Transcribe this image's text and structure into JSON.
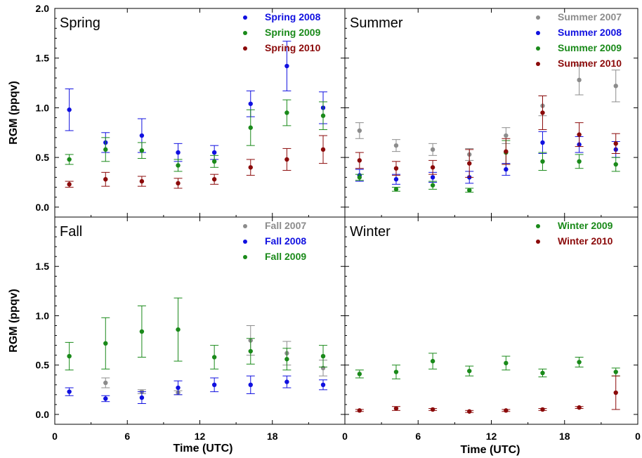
{
  "chart_data": {
    "type": "scatter",
    "y_axis_label": "RGM (ppqv)",
    "x_axis_label": "Time (UTC)",
    "x_tick_labels": [
      "0",
      "6",
      "12",
      "18",
      "0"
    ],
    "y_tick_labels": [
      "0.0",
      "0.5",
      "1.0",
      "1.5",
      "2.0"
    ],
    "xlim": [
      0,
      24
    ],
    "ylim": [
      -0.1,
      2.0
    ],
    "colors": {
      "2007": "#8c8c8c",
      "2008": "#1010e0",
      "2009": "#1a8a1a",
      "2010": "#8b0a0a"
    },
    "panels": [
      {
        "title": "Spring",
        "series": [
          {
            "name": "Spring 2008",
            "year": "2008",
            "x": [
              1.2,
              4.2,
              7.2,
              10.2,
              13.2,
              16.2,
              19.2,
              22.2
            ],
            "y": [
              0.98,
              0.65,
              0.72,
              0.55,
              0.55,
              1.04,
              1.42,
              1.0
            ],
            "err": [
              0.21,
              0.1,
              0.17,
              0.09,
              0.07,
              0.13,
              0.25,
              0.16
            ]
          },
          {
            "name": "Spring 2009",
            "year": "2009",
            "x": [
              1.2,
              4.2,
              7.2,
              10.2,
              13.2,
              16.2,
              19.2,
              22.2
            ],
            "y": [
              0.48,
              0.58,
              0.57,
              0.42,
              0.46,
              0.8,
              0.95,
              0.92
            ],
            "err": [
              0.05,
              0.12,
              0.08,
              0.06,
              0.06,
              0.18,
              0.13,
              0.14
            ]
          },
          {
            "name": "Spring 2010",
            "year": "2010",
            "x": [
              1.2,
              4.2,
              7.2,
              10.2,
              13.2,
              16.2,
              19.2,
              22.2
            ],
            "y": [
              0.23,
              0.28,
              0.26,
              0.24,
              0.28,
              0.4,
              0.48,
              0.58
            ],
            "err": [
              0.03,
              0.07,
              0.05,
              0.05,
              0.05,
              0.08,
              0.11,
              0.14
            ]
          }
        ]
      },
      {
        "title": "Summer",
        "series": [
          {
            "name": "Summer 2007",
            "year": "2007",
            "x": [
              1.2,
              4.2,
              7.2,
              10.2,
              13.2,
              16.2,
              19.2,
              22.2
            ],
            "y": [
              0.77,
              0.62,
              0.58,
              0.53,
              0.72,
              1.02,
              1.28,
              1.22
            ],
            "err": [
              0.08,
              0.06,
              0.06,
              0.06,
              0.08,
              0.1,
              0.15,
              0.16
            ]
          },
          {
            "name": "Summer 2008",
            "year": "2008",
            "x": [
              1.2,
              4.2,
              7.2,
              10.2,
              13.2,
              16.2,
              19.2,
              22.2
            ],
            "y": [
              0.32,
              0.28,
              0.3,
              0.3,
              0.38,
              0.65,
              0.63,
              0.58
            ],
            "err": [
              0.06,
              0.05,
              0.05,
              0.06,
              0.06,
              0.11,
              0.08,
              0.08
            ]
          },
          {
            "name": "Summer 2009",
            "year": "2009",
            "x": [
              1.2,
              4.2,
              7.2,
              10.2,
              13.2,
              16.2,
              19.2,
              22.2
            ],
            "y": [
              0.3,
              0.18,
              0.22,
              0.17,
              0.55,
              0.46,
              0.46,
              0.43
            ],
            "err": [
              0.03,
              0.02,
              0.04,
              0.02,
              0.12,
              0.09,
              0.07,
              0.07
            ]
          },
          {
            "name": "Summer 2010",
            "year": "2010",
            "x": [
              1.2,
              4.2,
              7.2,
              10.2,
              13.2,
              16.2,
              19.2,
              22.2
            ],
            "y": [
              0.47,
              0.39,
              0.4,
              0.44,
              0.56,
              0.95,
              0.73,
              0.64
            ],
            "err": [
              0.08,
              0.07,
              0.07,
              0.14,
              0.13,
              0.17,
              0.12,
              0.1
            ]
          }
        ]
      },
      {
        "title": "Fall",
        "series": [
          {
            "name": "Fall 2007",
            "year": "2007",
            "x": [
              1.2,
              4.2,
              7.2,
              10.2,
              13.2,
              16.2,
              19.2,
              22.2
            ],
            "y": [
              null,
              0.32,
              0.23,
              0.22,
              null,
              0.75,
              0.62,
              0.47
            ],
            "err": [
              null,
              0.05,
              0.02,
              0.02,
              null,
              0.15,
              0.12,
              0.08
            ]
          },
          {
            "name": "Fall 2008",
            "year": "2008",
            "x": [
              1.2,
              4.2,
              7.2,
              10.2,
              13.2,
              16.2,
              19.2,
              22.2
            ],
            "y": [
              0.23,
              0.16,
              0.17,
              0.27,
              0.3,
              0.3,
              0.33,
              0.3
            ],
            "err": [
              0.04,
              0.03,
              0.06,
              0.07,
              0.07,
              0.09,
              0.06,
              0.05
            ]
          },
          {
            "name": "Fall 2009",
            "year": "2009",
            "x": [
              1.2,
              4.2,
              7.2,
              10.2,
              13.2,
              16.2,
              19.2,
              22.2
            ],
            "y": [
              0.59,
              0.72,
              0.84,
              0.86,
              0.58,
              0.64,
              0.56,
              0.59
            ],
            "err": [
              0.14,
              0.26,
              0.26,
              0.32,
              0.12,
              0.13,
              0.11,
              0.11
            ]
          }
        ]
      },
      {
        "title": "Winter",
        "series": [
          {
            "name": "Winter 2009",
            "year": "2009",
            "x": [
              1.2,
              4.2,
              7.2,
              10.2,
              13.2,
              16.2,
              19.2,
              22.2
            ],
            "y": [
              0.41,
              0.43,
              0.54,
              0.44,
              0.52,
              0.42,
              0.53,
              0.43
            ],
            "err": [
              0.04,
              0.07,
              0.08,
              0.05,
              0.07,
              0.04,
              0.05,
              0.04
            ]
          },
          {
            "name": "Winter 2010",
            "year": "2010",
            "x": [
              1.2,
              4.2,
              7.2,
              10.2,
              13.2,
              16.2,
              19.2,
              22.2
            ],
            "y": [
              0.04,
              0.06,
              0.05,
              0.03,
              0.04,
              0.05,
              0.07,
              0.22
            ],
            "err": [
              0.01,
              0.02,
              0.01,
              0.01,
              0.01,
              0.01,
              0.01,
              0.17
            ]
          }
        ]
      }
    ]
  }
}
